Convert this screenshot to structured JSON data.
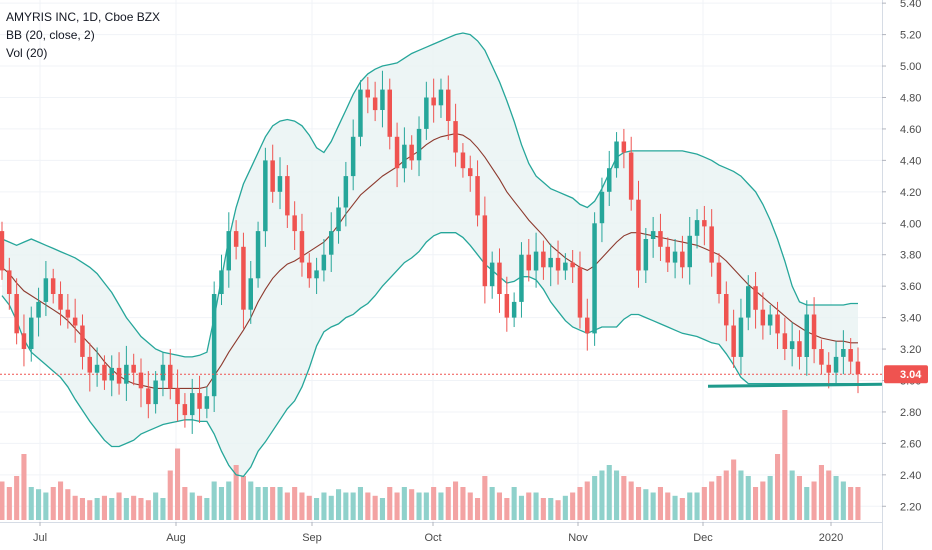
{
  "legend": {
    "symbol_line": "AMYRIS INC, 1D, Cboe BZX",
    "bb_line": "BB (20, close, 2)",
    "vol_line": "Vol (20)"
  },
  "colors": {
    "up": "#26a69a",
    "down": "#ef5350",
    "bb_band": "#26a69a",
    "bb_fill": "#e8f3f3",
    "bb_basis": "#8d3a2e",
    "vol_up": "#8fd1cb",
    "vol_down": "#f3a3a3",
    "price_line": "#ef5350",
    "support_line": "#1f9a8c"
  },
  "chart_data": {
    "type": "candlestick",
    "ylim": [
      2.1,
      5.42
    ],
    "y_ticks": [
      "2.20",
      "2.40",
      "2.60",
      "2.80",
      "3.00",
      "3.20",
      "3.40",
      "3.60",
      "3.80",
      "4.00",
      "4.20",
      "4.40",
      "4.60",
      "4.80",
      "5.00",
      "5.20",
      "5.40"
    ],
    "x_ticks": [
      "Jul",
      "Aug",
      "Sep",
      "Oct",
      "Nov",
      "Dec",
      "2020"
    ],
    "last_price_label": "3.04",
    "last_price": 3.04,
    "support_level": 2.97,
    "candles": [
      {
        "o": 3.95,
        "c": 3.7
      },
      {
        "o": 3.7,
        "c": 3.55
      },
      {
        "o": 3.55,
        "c": 3.3
      },
      {
        "o": 3.3,
        "c": 3.2
      },
      {
        "o": 3.2,
        "c": 3.4
      },
      {
        "o": 3.4,
        "c": 3.5
      },
      {
        "o": 3.5,
        "c": 3.65
      },
      {
        "o": 3.65,
        "c": 3.55
      },
      {
        "o": 3.55,
        "c": 3.45
      },
      {
        "o": 3.45,
        "c": 3.4
      },
      {
        "o": 3.4,
        "c": 3.35
      },
      {
        "o": 3.35,
        "c": 3.15
      },
      {
        "o": 3.15,
        "c": 3.05
      },
      {
        "o": 3.05,
        "c": 3.1
      },
      {
        "o": 3.1,
        "c": 3.0
      },
      {
        "o": 3.0,
        "c": 3.08
      },
      {
        "o": 3.08,
        "c": 2.98
      },
      {
        "o": 2.98,
        "c": 3.1
      },
      {
        "o": 3.1,
        "c": 3.05
      },
      {
        "o": 3.05,
        "c": 2.95
      },
      {
        "o": 2.95,
        "c": 2.85
      },
      {
        "o": 2.85,
        "c": 3.0
      },
      {
        "o": 3.0,
        "c": 3.1
      },
      {
        "o": 3.1,
        "c": 2.95
      },
      {
        "o": 2.95,
        "c": 2.85
      },
      {
        "o": 2.85,
        "c": 2.78
      },
      {
        "o": 2.78,
        "c": 2.92
      },
      {
        "o": 2.92,
        "c": 2.82
      },
      {
        "o": 2.82,
        "c": 2.9
      },
      {
        "o": 2.9,
        "c": 3.55
      },
      {
        "o": 3.55,
        "c": 3.7
      },
      {
        "o": 3.7,
        "c": 3.95
      },
      {
        "o": 3.95,
        "c": 3.85
      },
      {
        "o": 3.85,
        "c": 3.45
      },
      {
        "o": 3.45,
        "c": 3.65
      },
      {
        "o": 3.65,
        "c": 3.95
      },
      {
        "o": 3.95,
        "c": 4.4
      },
      {
        "o": 4.4,
        "c": 4.2
      },
      {
        "o": 4.2,
        "c": 4.3
      },
      {
        "o": 4.3,
        "c": 4.05
      },
      {
        "o": 4.05,
        "c": 3.95
      },
      {
        "o": 3.95,
        "c": 3.75
      },
      {
        "o": 3.75,
        "c": 3.65
      },
      {
        "o": 3.65,
        "c": 3.7
      },
      {
        "o": 3.7,
        "c": 3.8
      },
      {
        "o": 3.8,
        "c": 3.95
      },
      {
        "o": 3.95,
        "c": 4.1
      },
      {
        "o": 4.1,
        "c": 4.3
      },
      {
        "o": 4.3,
        "c": 4.55
      },
      {
        "o": 4.55,
        "c": 4.85
      },
      {
        "o": 4.85,
        "c": 4.8
      },
      {
        "o": 4.8,
        "c": 4.72
      },
      {
        "o": 4.72,
        "c": 4.85
      },
      {
        "o": 4.85,
        "c": 4.55
      },
      {
        "o": 4.55,
        "c": 4.35
      },
      {
        "o": 4.35,
        "c": 4.5
      },
      {
        "o": 4.5,
        "c": 4.4
      },
      {
        "o": 4.4,
        "c": 4.6
      },
      {
        "o": 4.6,
        "c": 4.8
      },
      {
        "o": 4.8,
        "c": 4.75
      },
      {
        "o": 4.75,
        "c": 4.85
      },
      {
        "o": 4.85,
        "c": 4.65
      },
      {
        "o": 4.65,
        "c": 4.45
      },
      {
        "o": 4.45,
        "c": 4.35
      },
      {
        "o": 4.35,
        "c": 4.3
      },
      {
        "o": 4.3,
        "c": 4.05
      },
      {
        "o": 4.05,
        "c": 3.6
      },
      {
        "o": 3.6,
        "c": 3.75
      },
      {
        "o": 3.75,
        "c": 3.55
      },
      {
        "o": 3.55,
        "c": 3.4
      },
      {
        "o": 3.4,
        "c": 3.5
      },
      {
        "o": 3.5,
        "c": 3.8
      },
      {
        "o": 3.8,
        "c": 3.7
      },
      {
        "o": 3.7,
        "c": 3.82
      },
      {
        "o": 3.82,
        "c": 3.72
      },
      {
        "o": 3.72,
        "c": 3.78
      },
      {
        "o": 3.78,
        "c": 3.7
      },
      {
        "o": 3.7,
        "c": 3.75
      },
      {
        "o": 3.75,
        "c": 3.72
      },
      {
        "o": 3.72,
        "c": 3.4
      },
      {
        "o": 3.4,
        "c": 3.3
      },
      {
        "o": 3.3,
        "c": 4.0
      },
      {
        "o": 4.0,
        "c": 4.2
      },
      {
        "o": 4.2,
        "c": 4.35
      },
      {
        "o": 4.35,
        "c": 4.52
      },
      {
        "o": 4.52,
        "c": 4.45
      },
      {
        "o": 4.45,
        "c": 4.15
      },
      {
        "o": 4.15,
        "c": 3.7
      },
      {
        "o": 3.7,
        "c": 3.9
      },
      {
        "o": 3.9,
        "c": 3.95
      },
      {
        "o": 3.95,
        "c": 3.85
      },
      {
        "o": 3.85,
        "c": 3.75
      },
      {
        "o": 3.75,
        "c": 3.82
      },
      {
        "o": 3.82,
        "c": 3.72
      },
      {
        "o": 3.72,
        "c": 3.92
      },
      {
        "o": 3.92,
        "c": 4.02
      },
      {
        "o": 4.02,
        "c": 3.98
      },
      {
        "o": 3.98,
        "c": 3.75
      },
      {
        "o": 3.75,
        "c": 3.55
      },
      {
        "o": 3.55,
        "c": 3.35
      },
      {
        "o": 3.35,
        "c": 3.15
      },
      {
        "o": 3.15,
        "c": 3.4
      },
      {
        "o": 3.4,
        "c": 3.6
      },
      {
        "o": 3.6,
        "c": 3.45
      },
      {
        "o": 3.45,
        "c": 3.35
      },
      {
        "o": 3.35,
        "c": 3.42
      },
      {
        "o": 3.42,
        "c": 3.3
      },
      {
        "o": 3.3,
        "c": 3.2
      },
      {
        "o": 3.2,
        "c": 3.25
      },
      {
        "o": 3.25,
        "c": 3.15
      },
      {
        "o": 3.15,
        "c": 3.42
      },
      {
        "o": 3.42,
        "c": 3.2
      },
      {
        "o": 3.2,
        "c": 3.1
      },
      {
        "o": 3.1,
        "c": 3.05
      },
      {
        "o": 3.05,
        "c": 3.15
      },
      {
        "o": 3.15,
        "c": 3.2
      },
      {
        "o": 3.2,
        "c": 3.12
      },
      {
        "o": 3.12,
        "c": 3.04
      }
    ],
    "bb_upper": [
      3.9,
      3.88,
      3.86,
      3.88,
      3.9,
      3.88,
      3.86,
      3.84,
      3.82,
      3.8,
      3.78,
      3.75,
      3.72,
      3.68,
      3.62,
      3.56,
      3.48,
      3.4,
      3.34,
      3.28,
      3.24,
      3.2,
      3.18,
      3.17,
      3.16,
      3.15,
      3.15,
      3.16,
      3.18,
      3.4,
      3.65,
      3.9,
      4.1,
      4.25,
      4.35,
      4.45,
      4.55,
      4.62,
      4.65,
      4.66,
      4.65,
      4.62,
      4.56,
      4.48,
      4.45,
      4.52,
      4.62,
      4.72,
      4.82,
      4.9,
      4.95,
      4.98,
      5.0,
      5.01,
      5.02,
      5.05,
      5.08,
      5.1,
      5.12,
      5.14,
      5.16,
      5.18,
      5.2,
      5.21,
      5.2,
      5.16,
      5.1,
      5.0,
      4.9,
      4.78,
      4.65,
      4.5,
      4.38,
      4.3,
      4.26,
      4.22,
      4.2,
      4.18,
      4.16,
      4.12,
      4.1,
      4.14,
      4.22,
      4.32,
      4.42,
      4.45,
      4.46,
      4.46,
      4.46,
      4.46,
      4.46,
      4.46,
      4.46,
      4.46,
      4.45,
      4.44,
      4.42,
      4.4,
      4.37,
      4.35,
      4.33,
      4.3,
      4.25,
      4.2,
      4.12,
      4.02,
      3.9,
      3.76,
      3.6,
      3.5,
      3.48,
      3.48,
      3.48,
      3.48,
      3.48,
      3.48,
      3.49,
      3.49
    ],
    "bb_basis": [
      3.72,
      3.68,
      3.62,
      3.57,
      3.54,
      3.51,
      3.48,
      3.45,
      3.42,
      3.38,
      3.33,
      3.28,
      3.23,
      3.18,
      3.12,
      3.07,
      3.03,
      3.0,
      2.98,
      2.97,
      2.96,
      2.95,
      2.95,
      2.95,
      2.95,
      2.95,
      2.95,
      2.95,
      2.96,
      3.03,
      3.1,
      3.18,
      3.25,
      3.32,
      3.4,
      3.5,
      3.58,
      3.65,
      3.7,
      3.74,
      3.76,
      3.79,
      3.82,
      3.85,
      3.88,
      3.93,
      3.99,
      4.06,
      4.12,
      4.18,
      4.22,
      4.26,
      4.3,
      4.33,
      4.36,
      4.4,
      4.43,
      4.46,
      4.5,
      4.53,
      4.55,
      4.56,
      4.57,
      4.56,
      4.53,
      4.48,
      4.42,
      4.35,
      4.28,
      4.2,
      4.14,
      4.08,
      4.02,
      3.97,
      3.92,
      3.86,
      3.82,
      3.78,
      3.75,
      3.72,
      3.7,
      3.73,
      3.78,
      3.83,
      3.88,
      3.92,
      3.94,
      3.94,
      3.93,
      3.92,
      3.91,
      3.9,
      3.89,
      3.88,
      3.87,
      3.86,
      3.84,
      3.82,
      3.8,
      3.76,
      3.71,
      3.66,
      3.61,
      3.57,
      3.53,
      3.49,
      3.45,
      3.41,
      3.37,
      3.34,
      3.31,
      3.29,
      3.27,
      3.26,
      3.25,
      3.25,
      3.24,
      3.24
    ],
    "bb_lower": [
      3.54,
      3.48,
      3.38,
      3.26,
      3.18,
      3.14,
      3.1,
      3.06,
      3.02,
      2.96,
      2.88,
      2.81,
      2.74,
      2.68,
      2.62,
      2.58,
      2.58,
      2.6,
      2.62,
      2.66,
      2.68,
      2.7,
      2.72,
      2.73,
      2.74,
      2.75,
      2.75,
      2.74,
      2.74,
      2.66,
      2.55,
      2.46,
      2.4,
      2.39,
      2.45,
      2.55,
      2.61,
      2.68,
      2.75,
      2.82,
      2.87,
      2.96,
      3.08,
      3.22,
      3.31,
      3.34,
      3.36,
      3.4,
      3.42,
      3.46,
      3.49,
      3.54,
      3.6,
      3.65,
      3.7,
      3.75,
      3.78,
      3.82,
      3.88,
      3.92,
      3.94,
      3.94,
      3.94,
      3.91,
      3.86,
      3.8,
      3.74,
      3.7,
      3.66,
      3.62,
      3.63,
      3.66,
      3.66,
      3.64,
      3.58,
      3.5,
      3.44,
      3.38,
      3.34,
      3.32,
      3.3,
      3.32,
      3.34,
      3.34,
      3.34,
      3.39,
      3.42,
      3.42,
      3.4,
      3.38,
      3.36,
      3.34,
      3.32,
      3.3,
      3.29,
      3.28,
      3.26,
      3.24,
      3.23,
      3.17,
      3.1,
      3.02,
      2.98,
      2.98,
      2.98,
      2.98,
      2.98,
      2.98,
      2.98,
      2.98,
      2.98,
      2.98,
      2.98,
      2.98,
      2.98,
      2.98,
      2.98,
      2.98
    ],
    "volume": [
      0.35,
      0.3,
      0.4,
      0.6,
      0.3,
      0.28,
      0.25,
      0.3,
      0.35,
      0.28,
      0.22,
      0.2,
      0.18,
      0.2,
      0.22,
      0.2,
      0.25,
      0.2,
      0.22,
      0.2,
      0.18,
      0.25,
      0.2,
      0.45,
      0.65,
      0.3,
      0.25,
      0.22,
      0.2,
      0.35,
      0.3,
      0.35,
      0.5,
      0.4,
      0.35,
      0.3,
      0.3,
      0.3,
      0.3,
      0.25,
      0.3,
      0.25,
      0.22,
      0.2,
      0.25,
      0.22,
      0.28,
      0.25,
      0.25,
      0.3,
      0.25,
      0.22,
      0.2,
      0.3,
      0.25,
      0.3,
      0.28,
      0.25,
      0.25,
      0.3,
      0.25,
      0.3,
      0.35,
      0.3,
      0.25,
      0.2,
      0.4,
      0.3,
      0.25,
      0.2,
      0.3,
      0.22,
      0.25,
      0.25,
      0.2,
      0.2,
      0.18,
      0.22,
      0.25,
      0.3,
      0.35,
      0.4,
      0.45,
      0.5,
      0.45,
      0.4,
      0.35,
      0.3,
      0.28,
      0.25,
      0.3,
      0.25,
      0.22,
      0.2,
      0.25,
      0.25,
      0.3,
      0.35,
      0.4,
      0.45,
      0.55,
      0.45,
      0.4,
      0.3,
      0.35,
      0.4,
      0.6,
      1.0,
      0.45,
      0.4,
      0.3,
      0.35,
      0.5,
      0.45,
      0.4,
      0.35,
      0.3,
      0.3
    ]
  }
}
